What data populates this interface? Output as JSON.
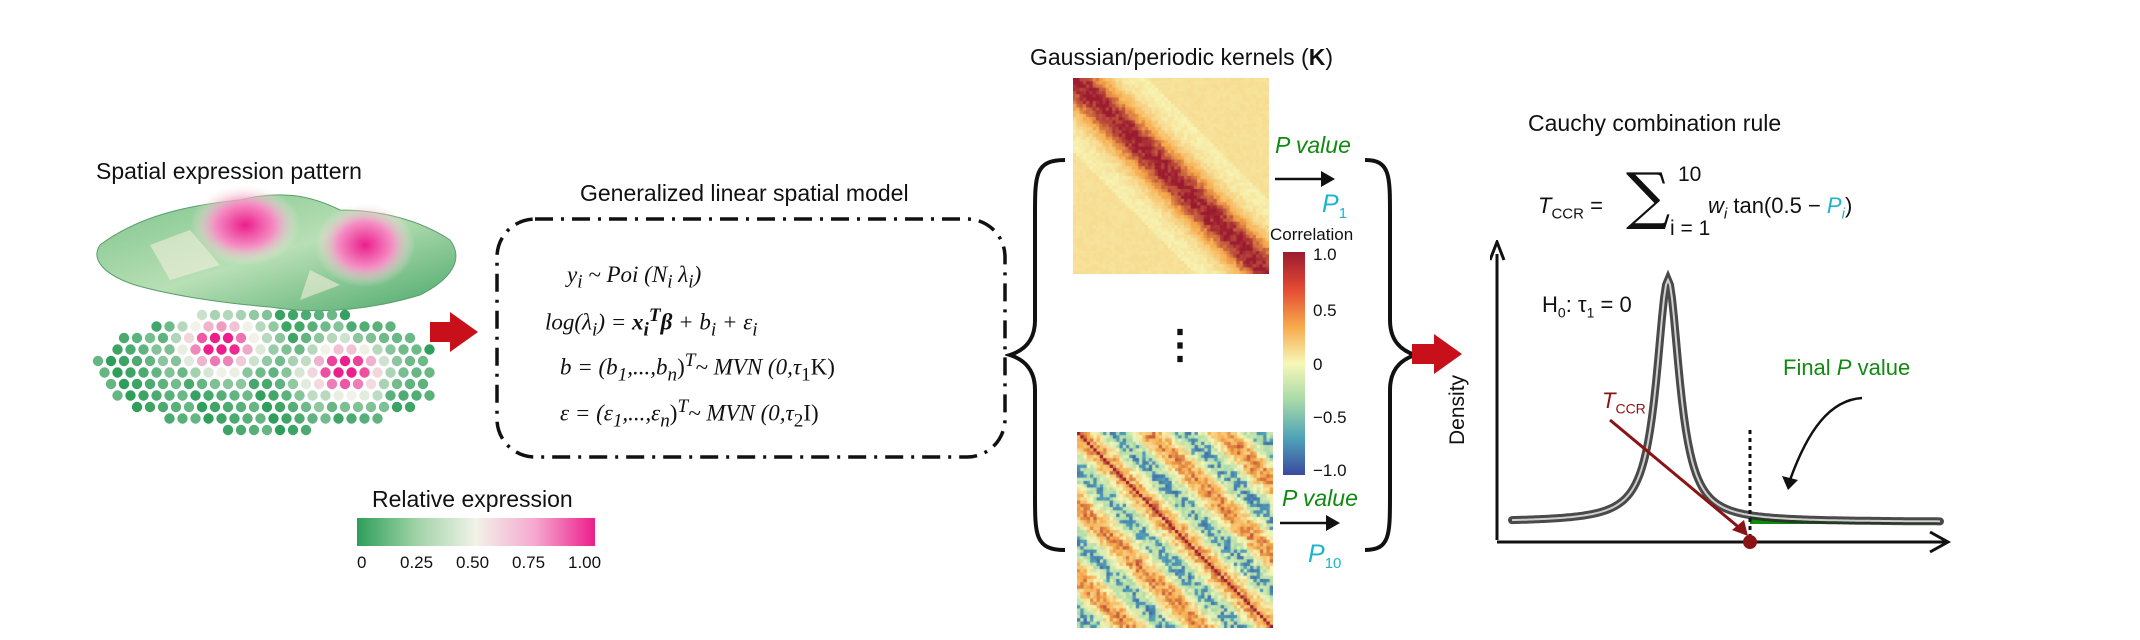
{
  "panel_spatial": {
    "title": "Spatial expression pattern",
    "legend_title": "Relative expression",
    "legend_ticks": [
      "0",
      "0.25",
      "0.50",
      "0.75",
      "1.00"
    ],
    "colors": {
      "low": "#2e9e5b",
      "mid": "#f2f2e8",
      "high": "#ec1e8c"
    }
  },
  "panel_model": {
    "title": "Generalized linear spatial model",
    "equations": {
      "eq1_y": "y",
      "eq1_sub_i": "i",
      "eq1_rest": " ~ Poi (N",
      "eq1_sub_i2": "i",
      "eq1_lambda": " λ",
      "eq1_sub_i3": "i",
      "eq1_close": ")",
      "eq2_log": "log(λ",
      "eq2_sub_i": "i",
      "eq2_mid": ") = ",
      "eq2_x": "x",
      "eq2_xsub": "i",
      "eq2_T": "T",
      "eq2_beta": "β",
      "eq2_b": " + b",
      "eq2_bsub": "i",
      "eq2_eps": " + ε",
      "eq2_epssub": "i",
      "eq3_lhs": "b = (b",
      "eq3_s1": "1",
      "eq3_mid": ",...,b",
      "eq3_sn": "n",
      "eq3_T": ")",
      "eq3_Tsup": "T",
      "eq3_rest": "~ MVN (0,τ",
      "eq3_tau": "1",
      "eq3_end": "K)",
      "eq4_lhs": "ε = (ε",
      "eq4_s1": "1",
      "eq4_mid": ",...,ε",
      "eq4_sn": "n",
      "eq4_T": ")",
      "eq4_Tsup": "T",
      "eq4_rest": "~ MVN (0,τ",
      "eq4_tau": "2",
      "eq4_end": "I)"
    }
  },
  "panel_kernels": {
    "title_prefix": "Gaussian/periodic kernels (",
    "title_bold": "K",
    "title_suffix": ")",
    "pvalue_top": "P value",
    "pvalue_bottom": "P value",
    "p1": "P",
    "p1_sub": "1",
    "p10": "P",
    "p10_sub": "10",
    "ellipsis": "⋮",
    "colorbar_title": "Correlation",
    "colorbar_ticks": [
      "1.0",
      "0.5",
      "0",
      "−0.5",
      "−1.0"
    ],
    "colors": {
      "neg": "#3b4aa0",
      "zero": "#f7f7b8",
      "pos": "#9b1b30"
    }
  },
  "panel_cauchy": {
    "title": "Cauchy combination rule",
    "formula": {
      "T": "T",
      "T_sub": "CCR",
      "eq": " =",
      "sum_top": "10",
      "sum_bottom": "i = 1",
      "w": "w",
      "w_sub": "i",
      "tan": " tan(0.5 − ",
      "P": "P",
      "P_sub": "i",
      "close": ")"
    },
    "hypothesis": "H",
    "hyp_sub": "0",
    "hyp_rest": ": τ",
    "hyp_tau_sub": "1",
    "hyp_end": " = 0",
    "ylabel": "Density",
    "tccr_label": "T",
    "tccr_sub": "CCR",
    "final_prefix": "Final ",
    "final_p": "P",
    "final_suffix": " value"
  }
}
